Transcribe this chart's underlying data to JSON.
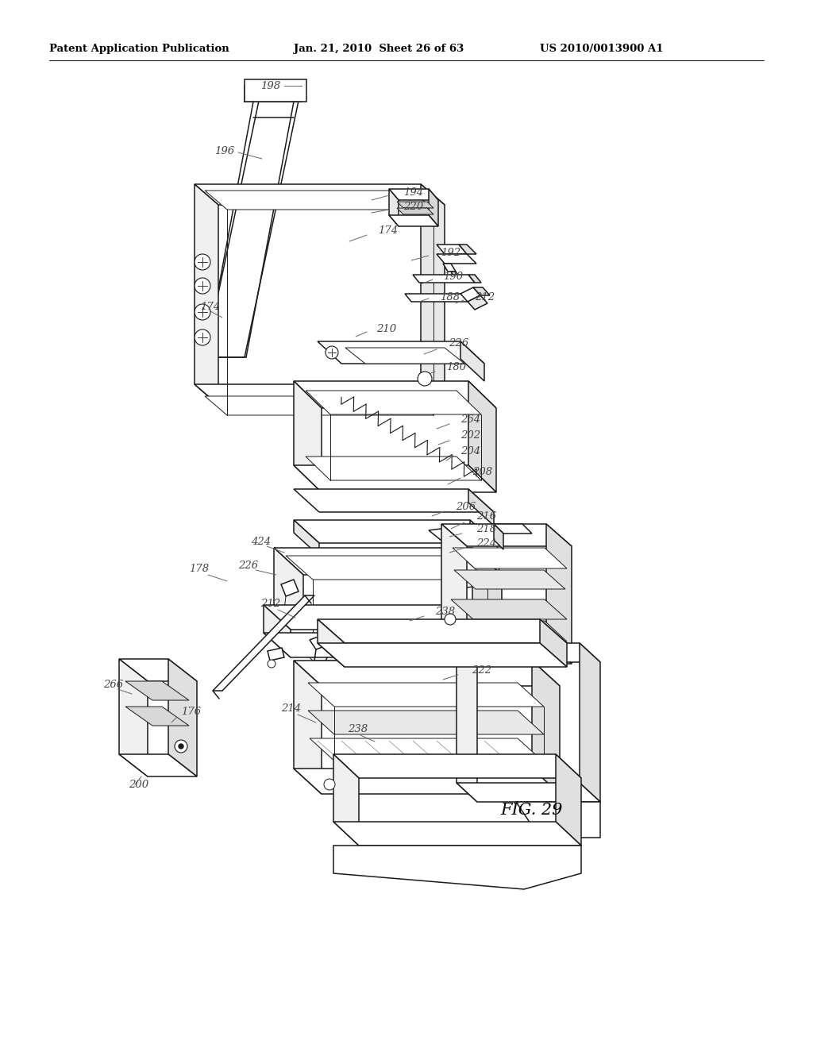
{
  "bg_color": "#ffffff",
  "line_color": "#1a1a1a",
  "label_color": "#444444",
  "header_color": "#000000",
  "fig_label": "FIG. 29",
  "header_left": "Patent Application Publication",
  "header_mid": "Jan. 21, 2010  Sheet 26 of 63",
  "header_right": "US 2010/0013900 A1"
}
